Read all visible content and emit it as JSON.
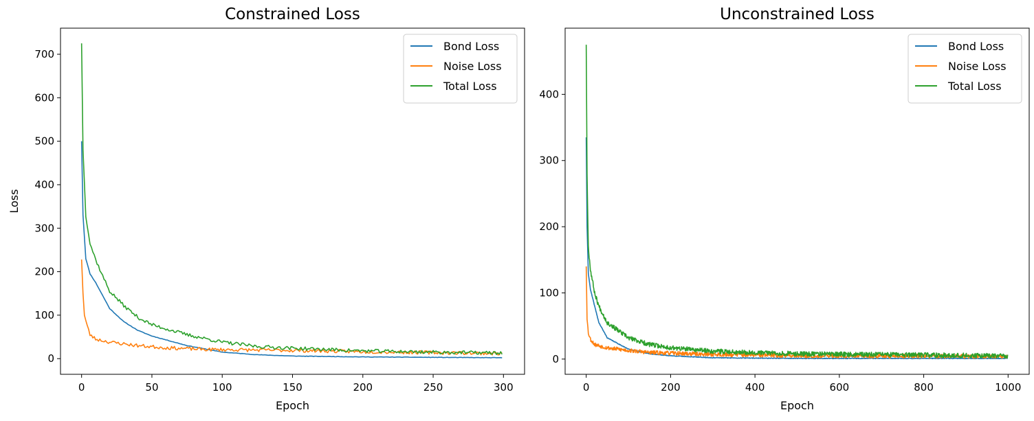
{
  "chart_data": [
    {
      "type": "line",
      "title": "Constrained Loss",
      "xlabel": "Epoch",
      "ylabel": "Loss",
      "xlim": [
        -15,
        315
      ],
      "ylim": [
        -36,
        760
      ],
      "xticks": [
        0,
        50,
        100,
        150,
        200,
        250,
        300
      ],
      "yticks": [
        0,
        100,
        200,
        300,
        400,
        500,
        600,
        700
      ],
      "grid": false,
      "legend_position": "top-right",
      "n_points": 300,
      "series": [
        {
          "name": "Bond Loss",
          "color": "#1f77b4",
          "decay": [
            [
              0,
              500
            ],
            [
              1,
              330
            ],
            [
              3,
              230
            ],
            [
              6,
              195
            ],
            [
              10,
              175
            ],
            [
              15,
              145
            ],
            [
              20,
              115
            ],
            [
              30,
              85
            ],
            [
              40,
              65
            ],
            [
              50,
              52
            ],
            [
              75,
              30
            ],
            [
              100,
              15
            ],
            [
              125,
              9
            ],
            [
              150,
              6
            ],
            [
              200,
              4
            ],
            [
              250,
              3
            ],
            [
              299,
              2
            ]
          ],
          "noise_amp": 0.5,
          "seed": 11
        },
        {
          "name": "Noise Loss",
          "color": "#ff7f0e",
          "decay": [
            [
              0,
              228
            ],
            [
              1,
              150
            ],
            [
              2,
              100
            ],
            [
              4,
              75
            ],
            [
              6,
              55
            ],
            [
              10,
              45
            ],
            [
              20,
              38
            ],
            [
              40,
              30
            ],
            [
              60,
              25
            ],
            [
              90,
              21
            ],
            [
              120,
              20
            ],
            [
              150,
              19
            ],
            [
              200,
              16
            ],
            [
              250,
              14
            ],
            [
              299,
              12
            ]
          ],
          "noise_amp": 4,
          "seed": 23
        },
        {
          "name": "Total Loss",
          "color": "#2ca02c",
          "decay": [
            [
              0,
              725
            ],
            [
              1,
              480
            ],
            [
              3,
              330
            ],
            [
              6,
              265
            ],
            [
              10,
              228
            ],
            [
              15,
              190
            ],
            [
              20,
              155
            ],
            [
              30,
              122
            ],
            [
              40,
              95
            ],
            [
              50,
              78
            ],
            [
              75,
              55
            ],
            [
              100,
              38
            ],
            [
              125,
              28
            ],
            [
              150,
              24
            ],
            [
              200,
              18
            ],
            [
              250,
              15
            ],
            [
              299,
              13
            ]
          ],
          "noise_amp": 4,
          "seed": 37
        }
      ]
    },
    {
      "type": "line",
      "title": "Unconstrained Loss",
      "xlabel": "Epoch",
      "ylabel": "",
      "xlim": [
        -50,
        1050
      ],
      "ylim": [
        -23,
        500
      ],
      "xticks": [
        0,
        200,
        400,
        600,
        800,
        1000
      ],
      "yticks": [
        0,
        100,
        200,
        300,
        400
      ],
      "grid": false,
      "legend_position": "top-right",
      "n_points": 1000,
      "series": [
        {
          "name": "Bond Loss",
          "color": "#1f77b4",
          "decay": [
            [
              0,
              335
            ],
            [
              2,
              200
            ],
            [
              5,
              130
            ],
            [
              10,
              105
            ],
            [
              20,
              80
            ],
            [
              30,
              55
            ],
            [
              50,
              32
            ],
            [
              100,
              15
            ],
            [
              150,
              8
            ],
            [
              200,
              5
            ],
            [
              300,
              2
            ],
            [
              500,
              1
            ],
            [
              999,
              1
            ]
          ],
          "noise_amp": 0.5,
          "seed": 41
        },
        {
          "name": "Noise Loss",
          "color": "#ff7f0e",
          "decay": [
            [
              0,
              140
            ],
            [
              2,
              60
            ],
            [
              5,
              40
            ],
            [
              10,
              30
            ],
            [
              20,
              22
            ],
            [
              50,
              17
            ],
            [
              100,
              13
            ],
            [
              150,
              10
            ],
            [
              200,
              9
            ],
            [
              300,
              7
            ],
            [
              500,
              5
            ],
            [
              999,
              4
            ]
          ],
          "noise_amp": 3,
          "seed": 53
        },
        {
          "name": "Total Loss",
          "color": "#2ca02c",
          "decay": [
            [
              0,
              475
            ],
            [
              2,
              280
            ],
            [
              5,
              170
            ],
            [
              10,
              135
            ],
            [
              20,
              100
            ],
            [
              30,
              80
            ],
            [
              50,
              55
            ],
            [
              100,
              32
            ],
            [
              150,
              22
            ],
            [
              200,
              17
            ],
            [
              300,
              12
            ],
            [
              500,
              8
            ],
            [
              999,
              5
            ]
          ],
          "noise_amp": 3.5,
          "seed": 67
        }
      ]
    }
  ]
}
